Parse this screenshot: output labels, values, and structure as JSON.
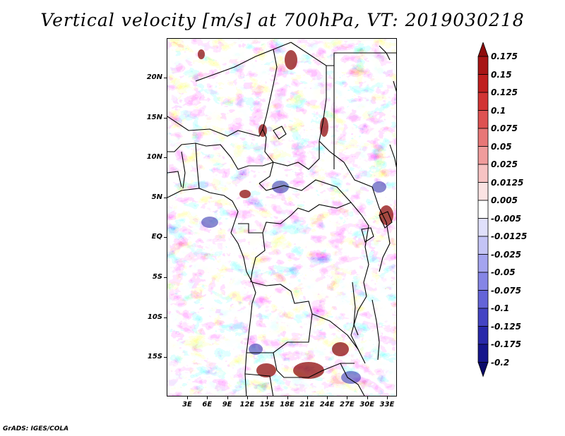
{
  "title": "Vertical velocity [m/s] at 700hPa, VT: 2019030218",
  "credit": "GrADS: IGES/COLA",
  "map": {
    "lat_labels": [
      "20N",
      "15N",
      "10N",
      "5N",
      "EQ",
      "5S",
      "10S",
      "15S"
    ],
    "lon_labels": [
      "3E",
      "6E",
      "9E",
      "12E",
      "15E",
      "18E",
      "21E",
      "24E",
      "27E",
      "30E",
      "33E"
    ],
    "lon_range": [
      0,
      35
    ],
    "lat_range": [
      -20,
      25
    ]
  },
  "colorbar": {
    "labels": [
      "0.175",
      "0.15",
      "0.125",
      "0.1",
      "0.075",
      "0.05",
      "0.025",
      "0.0125",
      "0.005",
      "-0.005",
      "-0.0125",
      "-0.025",
      "-0.05",
      "-0.075",
      "-0.1",
      "-0.125",
      "-0.175",
      "-0.2"
    ],
    "colors": [
      "#8e0c0c",
      "#a81515",
      "#c01f1f",
      "#d23434",
      "#de5252",
      "#e87777",
      "#f09c9c",
      "#f7c3c3",
      "#fbe3e3",
      "#ffffff",
      "#e0e0fb",
      "#c4c4f6",
      "#a4a4f0",
      "#8585e6",
      "#6464d8",
      "#4444c4",
      "#2828aa",
      "#15158c",
      "#0a0a6a"
    ]
  },
  "colors": {
    "positive": "#c41e1e",
    "negative": "#3232c8",
    "border": "#000000"
  }
}
